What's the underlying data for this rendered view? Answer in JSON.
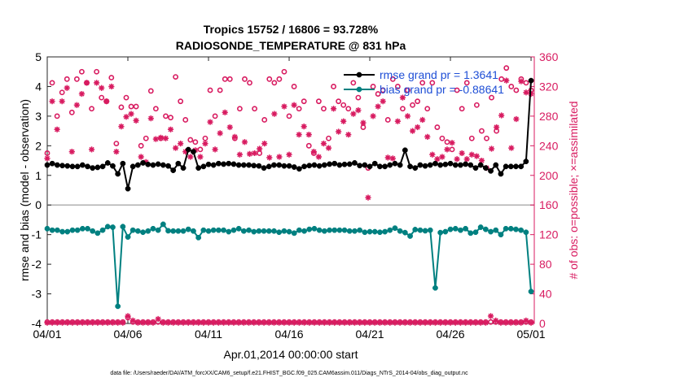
{
  "chart_data": {
    "type": "line",
    "title_line1": "Tropics 15752 / 16806 = 93.728%",
    "title_line2": "RADIOSONDE_TEMPERATURE @ 831 hPa",
    "xlabel": "Apr.01,2014 00:00:00 start",
    "ylabel_left": "rmse and bias (model - observation)",
    "ylabel_right": "# of obs: o=possible; ×=assimilated",
    "footer": "data file: /Users/raeder/DAI/ATM_forcXX/CAM6_setup/f.e21.FHIST_BGC.f09_025.CAM6assim.011/Diags_NTrS_2014-04/obs_diag_output.nc",
    "x_ticks": [
      {
        "v": 0,
        "label": "04/01"
      },
      {
        "v": 5,
        "label": "04/06"
      },
      {
        "v": 10,
        "label": "04/11"
      },
      {
        "v": 15,
        "label": "04/16"
      },
      {
        "v": 20,
        "label": "04/21"
      },
      {
        "v": 25,
        "label": "04/26"
      },
      {
        "v": 30,
        "label": "05/01"
      }
    ],
    "xlim": [
      0,
      30.2
    ],
    "ylim_left": [
      -4,
      5
    ],
    "yticks_left": [
      -4,
      -3,
      -2,
      -1,
      0,
      1,
      2,
      3,
      4,
      5
    ],
    "ylim_right": [
      0,
      360
    ],
    "yticks_right": [
      0,
      40,
      80,
      120,
      160,
      200,
      240,
      280,
      320,
      360
    ],
    "colors": {
      "rmse": "#000000",
      "bias": "#008080",
      "obs": "#d81b60",
      "zero": "#b0b0b0",
      "legend_text": "#1f4fd6"
    },
    "legend": [
      {
        "label": "rmse grand pr =  1.3641",
        "series": "rmse"
      },
      {
        "label": "bias grand pr =  -0.88641",
        "series": "bias"
      }
    ],
    "series": [
      {
        "name": "rmse",
        "axis": "left",
        "values": [
          1.35,
          1.4,
          1.35,
          1.33,
          1.32,
          1.3,
          1.3,
          1.35,
          1.3,
          1.25,
          1.27,
          1.3,
          1.42,
          1.32,
          1.05,
          1.4,
          0.55,
          1.3,
          1.35,
          1.42,
          1.37,
          1.35,
          1.38,
          1.35,
          1.32,
          1.17,
          1.4,
          1.25,
          1.87,
          1.8,
          1.25,
          1.3,
          1.37,
          1.35,
          1.4,
          1.38,
          1.4,
          1.38,
          1.35,
          1.35,
          1.35,
          1.33,
          1.32,
          1.25,
          1.3,
          1.35,
          1.35,
          1.32,
          1.32,
          1.28,
          1.22,
          1.3,
          1.33,
          1.35,
          1.32,
          1.35,
          1.38,
          1.4,
          1.35,
          1.37,
          1.38,
          1.42,
          1.33,
          1.35,
          1.3,
          1.4,
          1.3,
          1.3,
          1.35,
          1.4,
          1.35,
          1.85,
          1.3,
          1.25,
          1.35,
          1.32,
          1.35,
          1.4,
          1.35,
          1.37,
          1.4,
          1.35,
          1.35,
          1.38,
          1.35,
          1.25,
          1.35,
          1.25,
          1.15,
          1.35,
          1.05,
          1.3,
          1.3,
          1.3,
          1.3,
          1.47,
          4.2
        ]
      },
      {
        "name": "bias",
        "axis": "left",
        "values": [
          -0.8,
          -0.85,
          -0.85,
          -0.9,
          -0.9,
          -0.85,
          -0.85,
          -0.8,
          -0.8,
          -0.88,
          -0.95,
          -0.85,
          -0.73,
          -0.75,
          -3.42,
          -0.73,
          -1.08,
          -0.85,
          -0.88,
          -0.92,
          -0.88,
          -0.8,
          -0.85,
          -0.65,
          -0.87,
          -0.88,
          -0.88,
          -0.88,
          -0.82,
          -0.88,
          -1.1,
          -0.85,
          -0.88,
          -0.85,
          -0.85,
          -0.85,
          -0.9,
          -0.85,
          -0.8,
          -0.88,
          -0.85,
          -0.9,
          -0.88,
          -0.88,
          -0.88,
          -0.88,
          -0.92,
          -0.88,
          -0.9,
          -0.95,
          -0.85,
          -0.88,
          -0.82,
          -0.8,
          -0.85,
          -0.88,
          -0.85,
          -0.85,
          -0.85,
          -0.85,
          -0.88,
          -0.88,
          -0.85,
          -0.92,
          -0.9,
          -0.9,
          -0.92,
          -0.9,
          -0.85,
          -0.78,
          -0.88,
          -0.93,
          -1.05,
          -0.83,
          -0.85,
          -0.87,
          -0.85,
          -2.8,
          -0.93,
          -0.9,
          -0.82,
          -0.8,
          -0.85,
          -0.8,
          -0.95,
          -0.92,
          -0.75,
          -0.82,
          -0.9,
          -0.85,
          -1.0,
          -0.8,
          -0.8,
          -0.82,
          -0.85,
          -0.92,
          -2.92
        ]
      },
      {
        "name": "obs_possible",
        "axis": "right",
        "values": [
          230,
          325,
          280,
          312,
          330,
          285,
          330,
          340,
          325,
          290,
          340,
          305,
          300,
          332,
          243,
          292,
          305,
          293,
          293,
          240,
          250,
          314,
          290,
          250,
          280,
          278,
          333,
          300,
          275,
          248,
          245,
          235,
          250,
          315,
          280,
          315,
          330,
          330,
          250,
          290,
          330,
          325,
          290,
          230,
          275,
          330,
          325,
          330,
          340,
          280,
          320,
          290,
          300,
          240,
          230,
          300,
          290,
          250,
          320,
          300,
          295,
          290,
          325,
          305,
          265,
          210,
          320,
          310,
          315,
          275,
          330,
          320,
          290,
          315,
          295,
          300,
          325,
          290,
          325,
          265,
          250,
          245,
          235,
          315,
          290,
          325,
          250,
          295,
          260,
          250,
          305,
          260,
          330,
          345,
          320,
          315,
          330,
          325,
          315
        ]
      },
      {
        "name": "obs_assimilated",
        "axis": "right",
        "values": [
          223,
          300,
          262,
          300,
          318,
          232,
          295,
          310,
          325,
          235,
          325,
          318,
          300,
          320,
          232,
          266,
          279,
          283,
          274,
          225,
          218,
          277,
          249,
          251,
          250,
          262,
          237,
          243,
          232,
          225,
          234,
          225,
          243,
          272,
          235,
          257,
          285,
          265,
          252,
          228,
          245,
          229,
          230,
          236,
          243,
          224,
          283,
          225,
          293,
          228,
          295,
          255,
          266,
          255,
          232,
          225,
          243,
          237,
          290,
          259,
          273,
          255,
          283,
          288,
          271,
          170,
          280,
          293,
          300,
          224,
          223,
          273,
          305,
          280,
          260,
          265,
          275,
          252,
          228,
          222,
          225,
          235,
          244,
          222,
          230,
          222,
          228,
          226,
          220,
          210,
          236,
          265,
          281,
          328,
          237,
          276,
          327,
          312,
          310
        ]
      },
      {
        "name": "obs_possible_floor",
        "axis": "right",
        "values": [
          2,
          2,
          2,
          2,
          2,
          2,
          2,
          2,
          2,
          2,
          2,
          2,
          2,
          2,
          2,
          2,
          8,
          2,
          2,
          2,
          2,
          2,
          2,
          2,
          2,
          2,
          2,
          2,
          2,
          2,
          2,
          2,
          2,
          2,
          2,
          2,
          2,
          2,
          2,
          2,
          2,
          2,
          2,
          2,
          2,
          2,
          2,
          2,
          2,
          2,
          2,
          2,
          2,
          2,
          2,
          2,
          2,
          2,
          2,
          2,
          2,
          2,
          2,
          2,
          2,
          2,
          2,
          2,
          2,
          2,
          2,
          2,
          2,
          2,
          2,
          2,
          2,
          2,
          2,
          2,
          2,
          2,
          2,
          2,
          2,
          2,
          2,
          2,
          2,
          2,
          2,
          2,
          2,
          2,
          2,
          2,
          2
        ]
      },
      {
        "name": "obs_assimilated_floor",
        "axis": "right",
        "values": [
          1,
          1,
          1,
          1,
          1,
          1,
          1,
          1,
          1,
          1,
          1,
          1,
          1,
          1,
          1,
          1,
          10,
          4,
          1,
          1,
          1,
          1,
          6,
          1,
          1,
          1,
          1,
          1,
          1,
          1,
          1,
          1,
          1,
          1,
          1,
          1,
          1,
          1,
          1,
          1,
          1,
          1,
          1,
          1,
          1,
          1,
          1,
          1,
          1,
          1,
          1,
          1,
          1,
          1,
          1,
          1,
          1,
          1,
          1,
          1,
          1,
          1,
          1,
          1,
          1,
          1,
          1,
          1,
          1,
          1,
          1,
          1,
          1,
          1,
          1,
          1,
          1,
          1,
          1,
          1,
          1,
          1,
          1,
          1,
          1,
          1,
          1,
          1,
          10,
          4,
          1,
          1,
          1,
          1,
          1,
          4,
          1
        ]
      }
    ]
  }
}
